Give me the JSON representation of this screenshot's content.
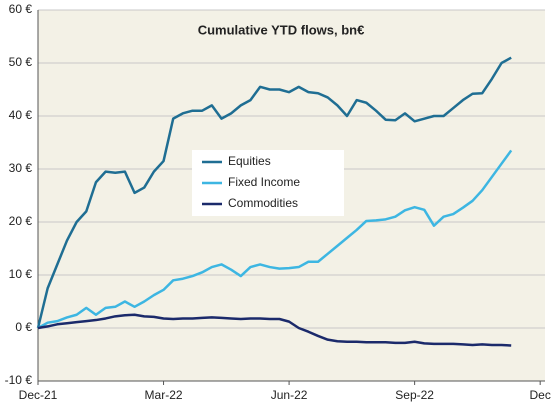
{
  "chart_data": {
    "type": "line",
    "title": "Cumulative YTD flows, bn€",
    "x": [
      0,
      1,
      2,
      3,
      4,
      5,
      6,
      7,
      8,
      9,
      10,
      11,
      12,
      13,
      14,
      15,
      16,
      17,
      18,
      19,
      20,
      21,
      22,
      23,
      24,
      25,
      26,
      27,
      28,
      29,
      30,
      31,
      32,
      33,
      34,
      35,
      36,
      37,
      38,
      39,
      40,
      41,
      42,
      43,
      44,
      45,
      46,
      47,
      48,
      49
    ],
    "series": [
      {
        "name": "Equities",
        "color": "#1f6e93",
        "values": [
          0,
          7.5,
          12,
          16.5,
          20,
          22,
          27.5,
          29.5,
          29.3,
          29.5,
          25.5,
          26.5,
          29.5,
          31.5,
          39.5,
          40.5,
          41,
          41,
          42,
          39.5,
          40.5,
          42,
          43,
          45.5,
          45,
          45,
          44.5,
          45.5,
          44.5,
          44.3,
          43.5,
          42,
          40,
          43,
          42.5,
          41,
          39.3,
          39.2,
          40.5,
          39,
          39.5,
          40,
          40,
          41.5,
          43,
          44.2,
          44.3,
          47,
          50,
          51
        ]
      },
      {
        "name": "Fixed Income",
        "color": "#3db6e2",
        "values": [
          0,
          1,
          1.3,
          2,
          2.5,
          3.8,
          2.5,
          3.8,
          4,
          5,
          4,
          5,
          6.2,
          7.2,
          9,
          9.3,
          9.8,
          10.5,
          11.5,
          12,
          11,
          9.8,
          11.5,
          12,
          11.5,
          11.2,
          11.3,
          11.5,
          12.5,
          12.5,
          14,
          15.5,
          17,
          18.5,
          20.2,
          20.3,
          20.5,
          21,
          22.2,
          22.8,
          22.3,
          19.3,
          21,
          21.5,
          22.7,
          24,
          26,
          28.5,
          31,
          33.5
        ]
      },
      {
        "name": "Commodities",
        "color": "#1b2a6b",
        "values": [
          0,
          0.3,
          0.7,
          0.9,
          1.1,
          1.3,
          1.5,
          1.8,
          2.2,
          2.4,
          2.5,
          2.2,
          2.1,
          1.8,
          1.7,
          1.8,
          1.8,
          1.9,
          2,
          1.9,
          1.8,
          1.7,
          1.8,
          1.8,
          1.7,
          1.7,
          1.2,
          0,
          -0.7,
          -1.5,
          -2.2,
          -2.5,
          -2.6,
          -2.6,
          -2.7,
          -2.7,
          -2.7,
          -2.8,
          -2.8,
          -2.6,
          -2.9,
          -3,
          -3,
          -3,
          -3.1,
          -3.2,
          -3.1,
          -3.2,
          -3.2,
          -3.3
        ]
      }
    ],
    "xlim": [
      0,
      52.5
    ],
    "xticks": [
      {
        "value": 0,
        "label": "Dec-21"
      },
      {
        "value": 13,
        "label": "Mar-22"
      },
      {
        "value": 26,
        "label": "Jun-22"
      },
      {
        "value": 39,
        "label": "Sep-22"
      },
      {
        "value": 52,
        "label": "Dec"
      }
    ],
    "ylim": [
      -10,
      60
    ],
    "yticks": [
      {
        "value": -10,
        "label": "-10 €"
      },
      {
        "value": 0,
        "label": "0 €"
      },
      {
        "value": 10,
        "label": "10 €"
      },
      {
        "value": 20,
        "label": "20 €"
      },
      {
        "value": 30,
        "label": "30 €"
      },
      {
        "value": 40,
        "label": "40 €"
      },
      {
        "value": 50,
        "label": "50 €"
      },
      {
        "value": 60,
        "label": "60 €"
      }
    ],
    "grid": true
  }
}
